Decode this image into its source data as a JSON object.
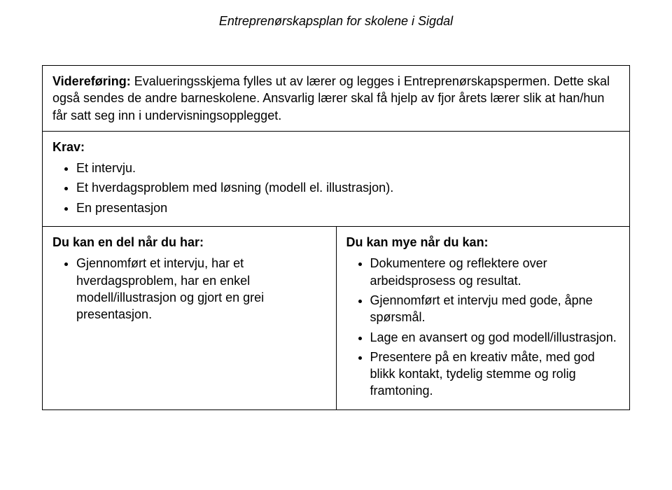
{
  "header": "Entreprenørskapsplan for skolene i Sigdal",
  "row1": {
    "label": "Videreføring:",
    "text_after_label": " Evalueringsskjema fylles ut av lærer og legges i Entreprenørskapspermen. Dette skal også sendes de andre barneskolene. Ansvarlig lærer skal få hjelp av fjor årets lærer slik at han/hun får satt seg inn i undervisningsopplegget."
  },
  "row2": {
    "label": "Krav:",
    "items": [
      "Et intervju.",
      "Et hverdagsproblem med løsning (modell el. illustrasjon).",
      "En presentasjon"
    ]
  },
  "row3": {
    "left": {
      "heading": "Du kan en del når du har:",
      "items": [
        "Gjennomført et intervju, har et hverdagsproblem, har en enkel modell/illustrasjon og gjort en grei presentasjon."
      ]
    },
    "right": {
      "heading": "Du kan mye når du kan:",
      "items": [
        "Dokumentere og reflektere over arbeidsprosess og resultat.",
        "Gjennomført et intervju med gode, åpne spørsmål.",
        "Lage en avansert og god modell/illustrasjon.",
        "Presentere på en kreativ måte, med god blikk kontakt, tydelig stemme og rolig framtoning."
      ]
    }
  }
}
